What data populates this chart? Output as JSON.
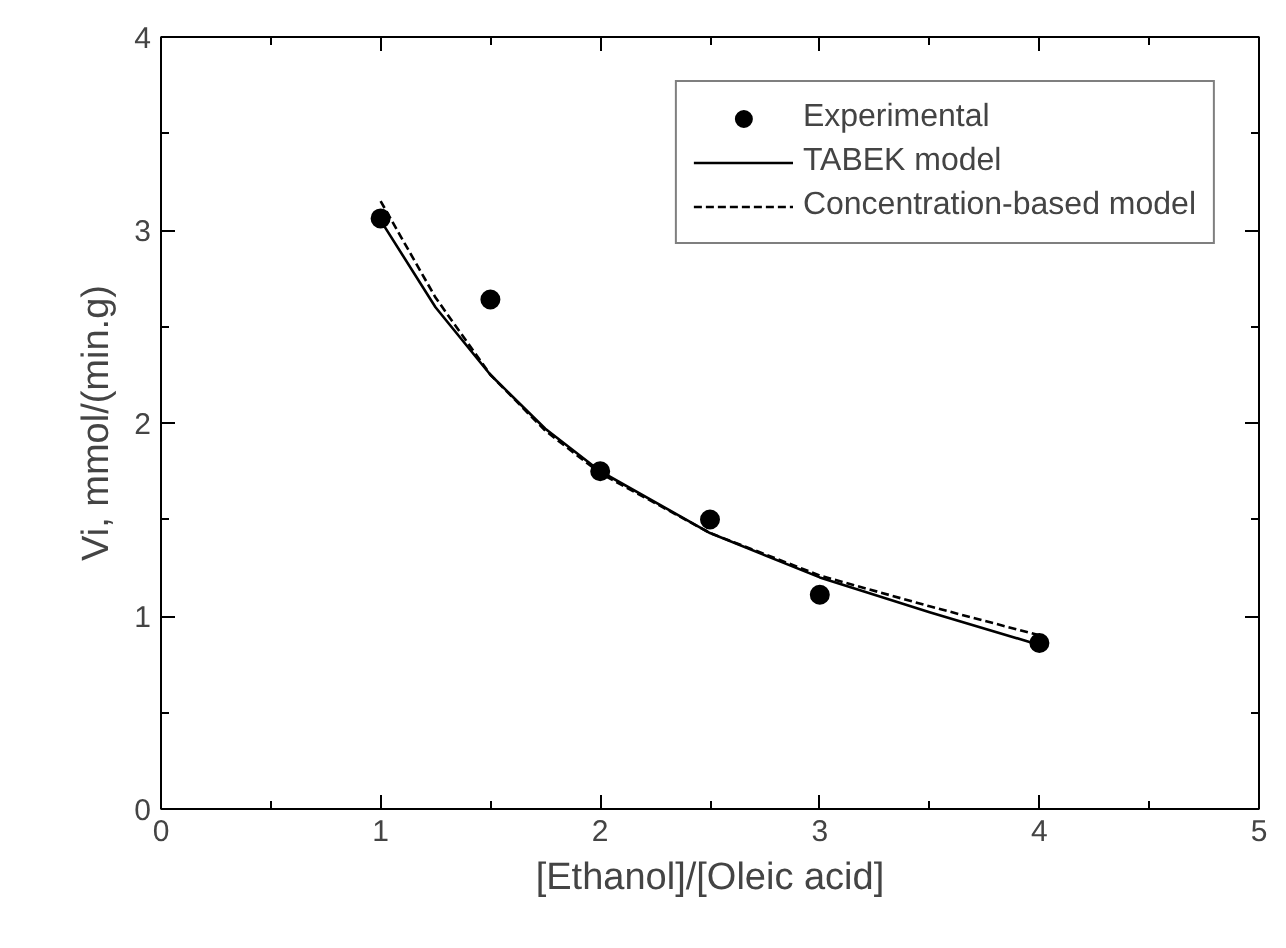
{
  "chart_data": {
    "type": "scatter",
    "xlabel": "[Ethanol]/[Oleic acid]",
    "ylabel": "Vi, mmol/(min.g)",
    "xlim": [
      0,
      5
    ],
    "ylim": [
      0,
      4
    ],
    "xticks": [
      0,
      1,
      2,
      3,
      4,
      5
    ],
    "yticks": [
      0,
      1,
      2,
      3,
      4
    ],
    "grid": false,
    "legend": "top right",
    "series": [
      {
        "name": "Experimental",
        "marker": "circle",
        "color": "#000000",
        "x": [
          1,
          1.5,
          2,
          2.5,
          3,
          4
        ],
        "values": [
          3.06,
          2.64,
          1.75,
          1.5,
          1.11,
          0.86
        ]
      },
      {
        "name": "TABEK model",
        "type": "line",
        "line_style": "solid",
        "color": "#000000",
        "x": [
          1,
          1.25,
          1.5,
          1.75,
          2,
          2.5,
          3,
          3.5,
          4
        ],
        "values": [
          3.05,
          2.6,
          2.25,
          1.97,
          1.75,
          1.43,
          1.2,
          1.02,
          0.85
        ]
      },
      {
        "name": "Concentration-based model",
        "type": "line",
        "line_style": "dashed",
        "color": "#000000",
        "x": [
          1,
          1.25,
          1.5,
          1.75,
          2,
          2.5,
          3,
          3.5,
          4
        ],
        "values": [
          3.15,
          2.65,
          2.25,
          1.96,
          1.74,
          1.43,
          1.21,
          1.05,
          0.9
        ]
      }
    ]
  }
}
